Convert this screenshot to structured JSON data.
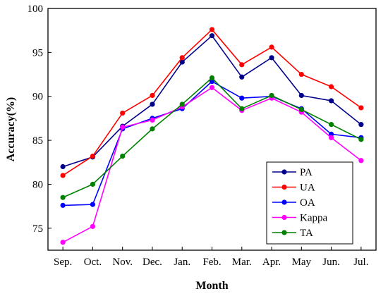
{
  "chart_data": {
    "type": "line",
    "xlabel": "Month",
    "ylabel": "Accuracy(%)",
    "categories": [
      "Sep.",
      "Oct.",
      "Nov.",
      "Dec.",
      "Jan.",
      "Feb.",
      "Mar.",
      "Apr.",
      "May",
      "Jun.",
      "Jul."
    ],
    "ylim": [
      72.5,
      100
    ],
    "yticks": [
      75,
      80,
      85,
      90,
      95,
      100
    ],
    "grid": false,
    "legend_position": "bottom-right",
    "series": [
      {
        "name": "PA",
        "color": "#00008B",
        "values": [
          82.0,
          83.1,
          86.6,
          89.1,
          93.9,
          96.9,
          92.2,
          94.4,
          90.1,
          89.5,
          86.8
        ]
      },
      {
        "name": "UA",
        "color": "#FF0000",
        "values": [
          81.0,
          83.2,
          88.1,
          90.1,
          94.4,
          97.6,
          93.6,
          95.6,
          92.5,
          91.1,
          88.7
        ]
      },
      {
        "name": "OA",
        "color": "#0000FF",
        "values": [
          77.6,
          77.7,
          86.3,
          87.5,
          88.6,
          91.7,
          89.8,
          90.0,
          88.6,
          85.7,
          85.3
        ]
      },
      {
        "name": "Kappa",
        "color": "#FF00FF",
        "values": [
          73.4,
          75.2,
          86.5,
          87.3,
          88.8,
          91.0,
          88.4,
          89.8,
          88.2,
          85.3,
          82.7
        ]
      },
      {
        "name": "TA",
        "color": "#008000",
        "values": [
          78.5,
          80.0,
          83.2,
          86.3,
          89.1,
          92.1,
          88.6,
          90.1,
          88.5,
          86.8,
          85.1
        ]
      }
    ]
  }
}
